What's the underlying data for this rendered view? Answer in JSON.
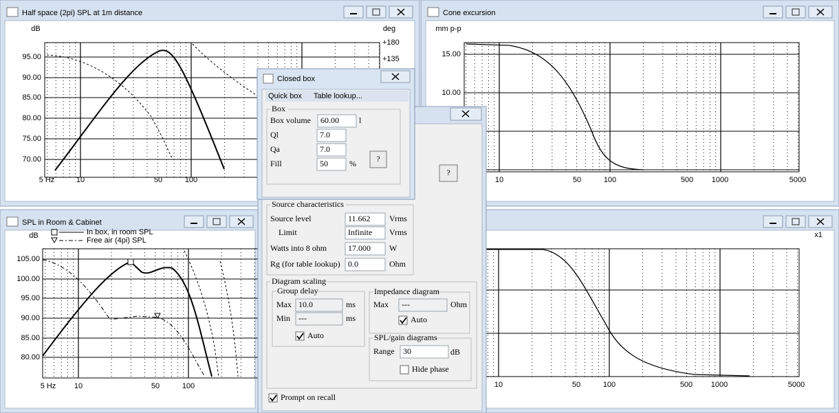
{
  "windows": [
    {
      "title": "Half space (2pi) SPL at 1m distance",
      "y_unit": "dB",
      "y2_unit": "deg",
      "yticks": [
        "95.00",
        "90.00",
        "85.00",
        "80.00",
        "75.00",
        "70.00"
      ],
      "y2ticks": [
        "+180",
        "+135"
      ],
      "xticks": [
        "5 Hz",
        "10",
        "50",
        "100"
      ]
    },
    {
      "title": "Cone excursion",
      "y_unit": "mm p-p",
      "yticks": [
        "15.00",
        "10.00"
      ],
      "xticks": [
        "10",
        "50",
        "100",
        "500",
        "1000",
        "5000"
      ]
    },
    {
      "title": "SPL in Room & Cabinet",
      "y_unit": "dB",
      "legend": [
        "In box, in room SPL",
        "Free air (4pi) SPL"
      ],
      "yticks": [
        "105.00",
        "100.00",
        "95.00",
        "90.00",
        "85.00",
        "80.00"
      ],
      "xticks": [
        "5 Hz",
        "10",
        "50",
        "100"
      ]
    },
    {
      "y_unit": "x1",
      "xticks": [
        "10",
        "50",
        "100",
        "500",
        "1000",
        "5000"
      ]
    }
  ],
  "closed_box": {
    "title": "Closed box",
    "menu": [
      "Quick box",
      "Table lookup..."
    ],
    "group": "Box",
    "help": "?",
    "fields": [
      {
        "label": "Box volume",
        "value": "60.00",
        "unit": "l"
      },
      {
        "label": "Ql",
        "value": "7.0"
      },
      {
        "label": "Qa",
        "value": "7.0"
      },
      {
        "label": "Fill",
        "value": "50",
        "unit": "%"
      }
    ]
  },
  "settings_dialog": {
    "help": "?",
    "source": {
      "title": "Source characteristics",
      "fields": [
        {
          "label": "Source level",
          "value": "11.662",
          "unit": "Vrms"
        },
        {
          "label": "Limit",
          "value": "Infinite",
          "unit": "Vrms"
        },
        {
          "label": "Watts into 8 ohm",
          "value": "17.000",
          "unit": "W"
        },
        {
          "label": "Rg (for table lookup)",
          "value": "0.0",
          "unit": "Ohm"
        }
      ]
    },
    "scaling": {
      "title": "Diagram scaling",
      "group_delay": {
        "title": "Group delay",
        "max_label": "Max",
        "max": "10.0",
        "min_label": "Min",
        "min": "---",
        "unit": "ms",
        "auto": "Auto"
      },
      "impedance": {
        "title": "Impedance diagram",
        "max_label": "Max",
        "max": "---",
        "unit": "Ohm",
        "auto": "Auto"
      },
      "spl": {
        "title": "SPL/gain diagrams",
        "range_label": "Range",
        "range": "30",
        "unit": "dB",
        "hide_phase": "Hide phase"
      }
    },
    "prompt": "Prompt on recall"
  }
}
